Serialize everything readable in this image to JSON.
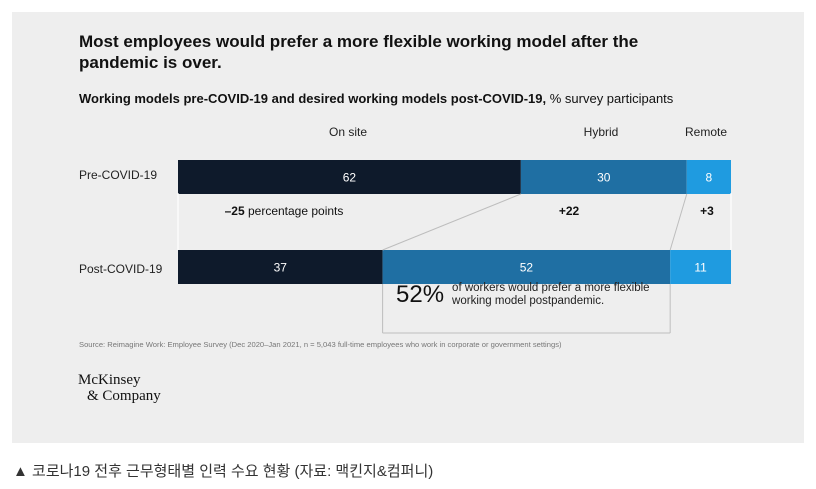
{
  "headline": "Most employees would prefer a more flexible working model after the pandemic is over.",
  "subtitle_bold": "Working models pre-COVID-19 and desired working models post-COVID-19,",
  "subtitle_rest": " % survey participants",
  "chart_data": {
    "type": "bar",
    "orientation": "horizontal-stacked",
    "categories": [
      "Pre-COVID-19",
      "Post-COVID-19"
    ],
    "series": [
      {
        "name": "On site",
        "values": [
          62,
          37
        ],
        "color": "#0e1a2b"
      },
      {
        "name": "Hybrid",
        "values": [
          30,
          52
        ],
        "color": "#1f6fa3"
      },
      {
        "name": "Remote",
        "values": [
          8,
          11
        ],
        "color": "#1f9be0"
      }
    ],
    "changes": [
      {
        "value": "–25",
        "suffix": " percentage points"
      },
      {
        "value": "+22",
        "suffix": ""
      },
      {
        "value": "+3",
        "suffix": ""
      }
    ],
    "legend": "top"
  },
  "callout": {
    "number": "52%",
    "text": "of workers would prefer a more flexible working model postpandemic."
  },
  "source": "Source: Reimagine Work: Employee Survey (Dec 2020–Jan 2021, n = 5,043 full-time employees who work in corporate or government settings)",
  "logo": {
    "line1": "McKinsey",
    "line2": "& Company"
  },
  "caption": "▲ 코로나19 전후 근무형태별 인력 수요 현황 (자료: 맥킨지&컴퍼니)"
}
